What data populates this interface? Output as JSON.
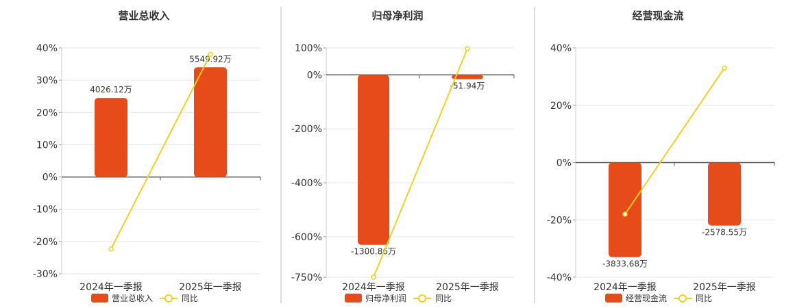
{
  "colors": {
    "bar": "#E84B1A",
    "line": "#F2D020",
    "grid": "#E6E6E6",
    "axis": "#555555",
    "divider": "#BBBBBB"
  },
  "chart_data": [
    {
      "type": "bar",
      "title": "营业总收入",
      "categories": [
        "2024年一季报",
        "2025年一季报"
      ],
      "ylim": [
        -30,
        40
      ],
      "yticks": [
        40,
        30,
        20,
        10,
        0,
        -10,
        -20,
        -30
      ],
      "ytick_labels": [
        "40%",
        "30%",
        "20%",
        "10%",
        "0%",
        "-10%",
        "-20%",
        "-30%"
      ],
      "bar_values": [
        24.5,
        34
      ],
      "bar_labels": [
        "4026.12万",
        "5549.92万"
      ],
      "line_values": [
        -22.3,
        38
      ],
      "legend": [
        "营业总收入",
        "同比"
      ],
      "grid": true
    },
    {
      "type": "bar",
      "title": "归母净利润",
      "categories": [
        "2024年一季报",
        "2025年一季报"
      ],
      "ylim": [
        -750,
        100
      ],
      "yticks": [
        100,
        0,
        -200,
        -400,
        -600,
        -750
      ],
      "ytick_labels": [
        "100%",
        "0%",
        "-200%",
        "-400%",
        "-600%",
        "-750%"
      ],
      "bar_values": [
        -630,
        -16
      ],
      "bar_labels": [
        "-1300.86万",
        "-51.94万"
      ],
      "line_values": [
        -750,
        97
      ],
      "legend": [
        "归母净利润",
        "同比"
      ],
      "grid": true
    },
    {
      "type": "bar",
      "title": "经营现金流",
      "categories": [
        "2024年一季报",
        "2025年一季报"
      ],
      "ylim": [
        -40,
        40
      ],
      "yticks": [
        40,
        20,
        0,
        -20,
        -40
      ],
      "ytick_labels": [
        "40%",
        "20%",
        "0%",
        "-20%",
        "-40%"
      ],
      "bar_values": [
        -33,
        -22
      ],
      "bar_labels": [
        "-3833.68万",
        "-2578.55万"
      ],
      "line_values": [
        -18,
        33
      ],
      "legend": [
        "经营现金流",
        "同比"
      ],
      "grid": true
    }
  ]
}
